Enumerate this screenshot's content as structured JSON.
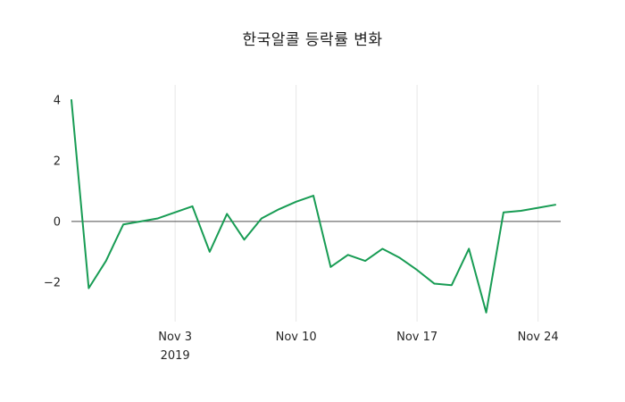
{
  "chart_data": {
    "type": "line",
    "title": "한국알콜 등락률 변화",
    "series_name": "등락률",
    "x": [
      "2019-10-28",
      "2019-10-29",
      "2019-10-30",
      "2019-10-31",
      "2019-11-01",
      "2019-11-02",
      "2019-11-03",
      "2019-11-04",
      "2019-11-05",
      "2019-11-06",
      "2019-11-07",
      "2019-11-08",
      "2019-11-09",
      "2019-11-10",
      "2019-11-11",
      "2019-11-12",
      "2019-11-13",
      "2019-11-14",
      "2019-11-15",
      "2019-11-16",
      "2019-11-17",
      "2019-11-18",
      "2019-11-19",
      "2019-11-20",
      "2019-11-21",
      "2019-11-22",
      "2019-11-23",
      "2019-11-24",
      "2019-11-25"
    ],
    "values": [
      4.0,
      -2.2,
      -1.3,
      -0.1,
      0.0,
      0.1,
      0.3,
      0.5,
      -1.0,
      0.25,
      -0.6,
      0.1,
      0.4,
      0.65,
      0.85,
      -1.5,
      -1.1,
      -1.3,
      -0.9,
      -1.2,
      -1.6,
      -2.05,
      -2.1,
      -0.9,
      -3.0,
      0.3,
      0.35,
      0.45,
      0.55
    ],
    "x_ticks": [
      {
        "label": "Nov 3",
        "sublabel": "2019",
        "index": 6
      },
      {
        "label": "Nov 10",
        "sublabel": "",
        "index": 13
      },
      {
        "label": "Nov 17",
        "sublabel": "",
        "index": 20
      },
      {
        "label": "Nov 24",
        "sublabel": "",
        "index": 27
      }
    ],
    "y_ticks": [
      {
        "label": "4",
        "value": 4
      },
      {
        "label": "2",
        "value": 2
      },
      {
        "label": "0",
        "value": 0
      },
      {
        "label": "−2",
        "value": -2
      }
    ],
    "ylim": [
      -3.3,
      4.5
    ],
    "grid": "vertical-only",
    "legend": "none",
    "colors": {
      "line": "#189c54",
      "grid": "#e7e7e7",
      "zero_line": "#4d4d4d",
      "text": "#262626",
      "background": "#ffffff"
    }
  }
}
